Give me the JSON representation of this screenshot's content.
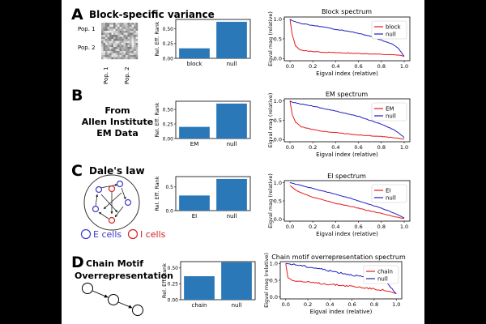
{
  "rows": [
    {
      "letter": "A",
      "title_lines": [
        "Block-specific variance"
      ],
      "matrix_labels": {
        "y1": "Pop. 1",
        "y2": "Pop. 2",
        "x1": "Pop. 1",
        "x2": "Pop. 2"
      },
      "bar": {
        "ylabel": "Rel. Eff. Rank",
        "categories": [
          "block",
          "null"
        ],
        "values": [
          0.17,
          0.62
        ],
        "yticks": [
          "0.00",
          "0.25",
          "0.50"
        ],
        "ymax": 0.66
      },
      "spectrum": {
        "title": "Block spectrum",
        "xlabel": "Eigval index (relative)",
        "ylabel": "Eigval mag (relative)",
        "legend": [
          "block",
          "null"
        ]
      }
    },
    {
      "letter": "B",
      "title_lines": [
        "From",
        "Allen Institute",
        "EM Data"
      ],
      "bar": {
        "ylabel": "Rel. Eff. Rank",
        "categories": [
          "EM",
          "null"
        ],
        "values": [
          0.2,
          0.6
        ],
        "yticks": [
          "0.00",
          "0.25",
          "0.50"
        ],
        "ymax": 0.64
      },
      "spectrum": {
        "title": "EM spectrum",
        "xlabel": "Eigval index (relative)",
        "ylabel": "Eigval mag (relative)",
        "legend": [
          "EM",
          "null"
        ]
      }
    },
    {
      "letter": "C",
      "title_lines": [
        "Dale's law"
      ],
      "circuit_legend": {
        "e": "E cells",
        "i": "I cells"
      },
      "bar": {
        "ylabel": "Rel. Eff. Rank",
        "categories": [
          "EI",
          "null"
        ],
        "values": [
          0.32,
          0.67
        ],
        "yticks": [
          "0.0",
          "0.5"
        ],
        "ymax": 0.72
      },
      "spectrum": {
        "title": "EI spectrum",
        "xlabel": "Eigval index (relative)",
        "ylabel": "Eigval mag (relative)",
        "legend": [
          "EI",
          "null"
        ]
      }
    },
    {
      "letter": "D",
      "title_lines": [
        "Chain Motif",
        "Overrepresentation"
      ],
      "bar": {
        "ylabel": "Rel. Eff. Rank",
        "categories": [
          "chain",
          "null"
        ],
        "values": [
          0.37,
          0.59
        ],
        "yticks": [
          "0.00",
          "0.25",
          "0.50"
        ],
        "ymax": 0.6
      },
      "spectrum": {
        "title": "Chain motif overrepresentation spectrum",
        "xlabel": "Eigval index (relative)",
        "ylabel": "Eigval mag (relative)",
        "legend": [
          "chain",
          "null"
        ]
      }
    }
  ],
  "spectrum_axis": {
    "xticks": [
      "0.0",
      "0.2",
      "0.4",
      "0.6",
      "0.8",
      "1.0"
    ],
    "yticks": [
      "0.0",
      "0.5",
      "1.0"
    ]
  },
  "colors": {
    "bar": "#2a78b8",
    "red": "#e41a1c",
    "blue": "#1f1fbf",
    "e_cell": "#3a3ac8",
    "i_cell": "#d62020"
  },
  "chart_data": [
    {
      "type": "bar",
      "title": "",
      "ylabel": "Rel. Eff. Rank",
      "categories": [
        "block",
        "null"
      ],
      "values": [
        0.17,
        0.62
      ]
    },
    {
      "type": "line",
      "title": "Block spectrum",
      "xlabel": "Eigval index (relative)",
      "ylabel": "Eigval mag (relative)",
      "xlim": [
        0,
        1
      ],
      "ylim": [
        0,
        1
      ],
      "series": [
        {
          "name": "block",
          "x": [
            0,
            0.02,
            0.05,
            0.08,
            0.12,
            0.2,
            0.3,
            0.5,
            0.7,
            0.85,
            0.95,
            1.0
          ],
          "y": [
            1.0,
            0.6,
            0.32,
            0.24,
            0.2,
            0.18,
            0.16,
            0.14,
            0.12,
            0.1,
            0.09,
            0.06
          ]
        },
        {
          "name": "null",
          "x": [
            0,
            0.02,
            0.05,
            0.1,
            0.2,
            0.3,
            0.4,
            0.5,
            0.6,
            0.7,
            0.8,
            0.9,
            0.95,
            1.0
          ],
          "y": [
            1.0,
            0.96,
            0.93,
            0.89,
            0.84,
            0.8,
            0.74,
            0.7,
            0.64,
            0.57,
            0.47,
            0.36,
            0.25,
            0.06
          ]
        }
      ]
    },
    {
      "type": "bar",
      "title": "",
      "ylabel": "Rel. Eff. Rank",
      "categories": [
        "EM",
        "null"
      ],
      "values": [
        0.2,
        0.6
      ]
    },
    {
      "type": "line",
      "title": "EM spectrum",
      "xlabel": "Eigval index (relative)",
      "ylabel": "Eigval mag (relative)",
      "xlim": [
        0,
        1
      ],
      "ylim": [
        0,
        1
      ],
      "series": [
        {
          "name": "EM",
          "x": [
            0,
            0.02,
            0.05,
            0.1,
            0.2,
            0.3,
            0.4,
            0.5,
            0.6,
            0.7,
            0.8,
            0.9,
            1.0
          ],
          "y": [
            1.0,
            0.65,
            0.45,
            0.33,
            0.26,
            0.21,
            0.18,
            0.15,
            0.12,
            0.1,
            0.08,
            0.05,
            0.01
          ]
        },
        {
          "name": "null",
          "x": [
            0,
            0.02,
            0.05,
            0.1,
            0.2,
            0.3,
            0.4,
            0.5,
            0.6,
            0.7,
            0.8,
            0.9,
            0.95,
            1.0
          ],
          "y": [
            1.0,
            0.97,
            0.95,
            0.92,
            0.87,
            0.8,
            0.74,
            0.67,
            0.6,
            0.5,
            0.4,
            0.27,
            0.18,
            0.05
          ]
        }
      ]
    },
    {
      "type": "bar",
      "title": "",
      "ylabel": "Rel. Eff. Rank",
      "categories": [
        "EI",
        "null"
      ],
      "values": [
        0.32,
        0.67
      ]
    },
    {
      "type": "line",
      "title": "EI spectrum",
      "xlabel": "Eigval index (relative)",
      "ylabel": "Eigval mag (relative)",
      "xlim": [
        0,
        1
      ],
      "ylim": [
        0,
        1
      ],
      "series": [
        {
          "name": "EI",
          "x": [
            0,
            0.05,
            0.1,
            0.2,
            0.3,
            0.4,
            0.5,
            0.6,
            0.7,
            0.8,
            0.9,
            1.0
          ],
          "y": [
            0.92,
            0.8,
            0.72,
            0.6,
            0.52,
            0.43,
            0.37,
            0.3,
            0.22,
            0.16,
            0.08,
            0.02
          ]
        },
        {
          "name": "null",
          "x": [
            0,
            0.05,
            0.1,
            0.2,
            0.3,
            0.4,
            0.5,
            0.6,
            0.7,
            0.8,
            0.9,
            1.0
          ],
          "y": [
            1.0,
            0.96,
            0.92,
            0.84,
            0.76,
            0.68,
            0.6,
            0.5,
            0.4,
            0.3,
            0.18,
            0.03
          ]
        }
      ]
    },
    {
      "type": "bar",
      "title": "",
      "ylabel": "Rel. Eff. Rank",
      "categories": [
        "chain",
        "null"
      ],
      "values": [
        0.37,
        0.59
      ]
    },
    {
      "type": "line",
      "title": "Chain motif overrepresentation spectrum",
      "xlabel": "Eigval index (relative)",
      "ylabel": "Eigval mag (relative)",
      "xlim": [
        0,
        1
      ],
      "ylim": [
        0,
        1
      ],
      "series": [
        {
          "name": "chain",
          "x": [
            0,
            0.02,
            0.05,
            0.1,
            0.2,
            0.3,
            0.4,
            0.5,
            0.6,
            0.7,
            0.8,
            0.9,
            0.95,
            1.0
          ],
          "y": [
            1.0,
            0.58,
            0.52,
            0.48,
            0.44,
            0.41,
            0.38,
            0.35,
            0.32,
            0.28,
            0.24,
            0.2,
            0.14,
            0.1
          ]
        },
        {
          "name": "null",
          "x": [
            0,
            0.05,
            0.1,
            0.2,
            0.3,
            0.4,
            0.5,
            0.6,
            0.7,
            0.8,
            0.9,
            0.95,
            1.0
          ],
          "y": [
            1.0,
            0.98,
            0.96,
            0.9,
            0.85,
            0.78,
            0.72,
            0.66,
            0.6,
            0.55,
            0.5,
            0.3,
            0.1
          ]
        }
      ]
    }
  ]
}
